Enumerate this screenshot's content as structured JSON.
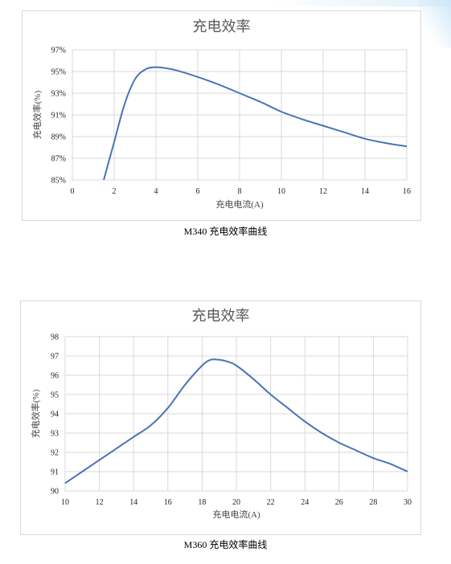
{
  "chart_data": [
    {
      "type": "line",
      "title": "充电效率",
      "xlabel": "充电电流(A)",
      "ylabel": "充电效率(%)",
      "xlim": [
        0,
        16
      ],
      "ylim": [
        85,
        97
      ],
      "xticks": [
        "0",
        "2",
        "4",
        "6",
        "8",
        "10",
        "12",
        "14",
        "16"
      ],
      "yticks": [
        "85%",
        "87%",
        "89%",
        "91%",
        "93%",
        "95%",
        "97%"
      ],
      "grid": true,
      "line_color": "#4a74b3",
      "series": [
        {
          "x": [
            1.5,
            2.0,
            2.5,
            3.0,
            3.5,
            4.0,
            4.5,
            5.0,
            6.0,
            7.0,
            8.0,
            9.0,
            10.0,
            11.0,
            12.0,
            13.0,
            14.0,
            15.0,
            16.0
          ],
          "values": [
            85.0,
            88.5,
            92.0,
            94.3,
            95.2,
            95.4,
            95.3,
            95.1,
            94.5,
            93.8,
            93.0,
            92.2,
            91.3,
            90.6,
            90.0,
            89.4,
            88.8,
            88.4,
            88.1
          ]
        }
      ],
      "caption": "M340 充电效率曲线"
    },
    {
      "type": "line",
      "title": "充电效率",
      "xlabel": "充电电流(A)",
      "ylabel": "充电效率(%)",
      "xlim": [
        10,
        30
      ],
      "ylim": [
        90,
        98
      ],
      "xticks": [
        "10",
        "12",
        "14",
        "16",
        "18",
        "20",
        "22",
        "24",
        "26",
        "28",
        "30"
      ],
      "yticks": [
        "90",
        "91",
        "92",
        "93",
        "94",
        "95",
        "96",
        "97",
        "98"
      ],
      "grid": true,
      "line_color": "#4a74b3",
      "series": [
        {
          "x": [
            10,
            11,
            12,
            13,
            14,
            15,
            16,
            17,
            18,
            18.5,
            19,
            19.5,
            20,
            21,
            22,
            23,
            24,
            25,
            26,
            27,
            28,
            29,
            30
          ],
          "values": [
            90.4,
            91.0,
            91.6,
            92.2,
            92.8,
            93.4,
            94.3,
            95.5,
            96.5,
            96.8,
            96.8,
            96.7,
            96.5,
            95.8,
            95.0,
            94.3,
            93.6,
            93.0,
            92.5,
            92.1,
            91.7,
            91.4,
            91.0
          ]
        }
      ],
      "caption": "M360 充电效率曲线"
    }
  ]
}
